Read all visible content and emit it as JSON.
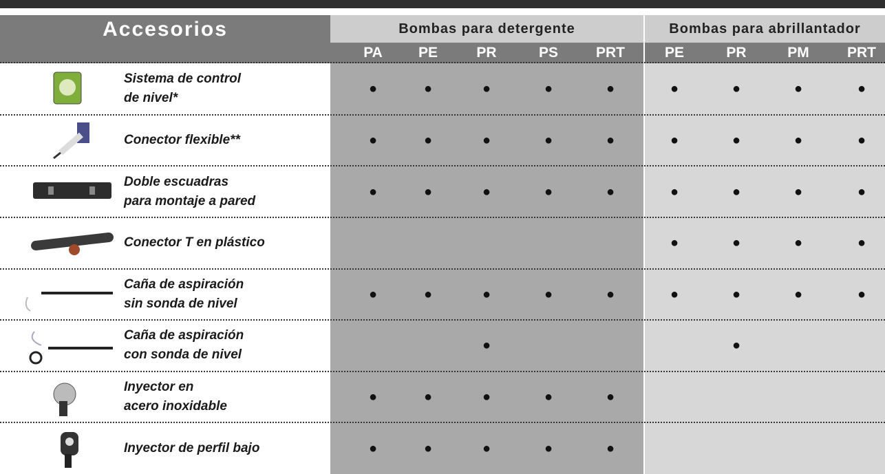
{
  "header": {
    "title": "Accesorios",
    "groups": [
      {
        "title": "Bombas para detergente",
        "columns": [
          "PA",
          "PE",
          "PR",
          "PS",
          "PRT"
        ]
      },
      {
        "title": "Bombas para abrillantador",
        "columns": [
          "PE",
          "PR",
          "PM",
          "PRT"
        ]
      }
    ]
  },
  "rows": [
    {
      "label": [
        "Sistema de control",
        "de nivel*"
      ],
      "cells": [
        "●",
        "●",
        "●",
        "●",
        "●",
        "●",
        "●",
        "●",
        "●"
      ]
    },
    {
      "label": [
        "Conector flexible**"
      ],
      "cells": [
        "●",
        "●",
        "●",
        "●",
        "●",
        "●",
        "●",
        "●",
        "●"
      ]
    },
    {
      "label": [
        "Doble escuadras",
        "para montaje a pared"
      ],
      "cells": [
        "●",
        "●",
        "●",
        "●",
        "●",
        "●",
        "●",
        "●",
        "●"
      ]
    },
    {
      "label": [
        "Conector T en plástico"
      ],
      "cells": [
        null,
        null,
        null,
        null,
        null,
        "●",
        "●",
        "●",
        "●"
      ]
    },
    {
      "label": [
        "Caña de aspiración",
        "sin sonda de nivel"
      ],
      "cells": [
        "●",
        "●",
        "●",
        "●",
        "●",
        "●",
        "●",
        "●",
        "●"
      ]
    },
    {
      "label": [
        "Caña de aspiración",
        "con sonda de nivel"
      ],
      "cells": [
        null,
        null,
        "●",
        null,
        null,
        null,
        "●",
        null,
        null
      ]
    },
    {
      "label": [
        "Inyector en",
        "acero inoxidable"
      ],
      "cells": [
        "●",
        "●",
        "●",
        "●",
        "●",
        null,
        null,
        null,
        null
      ]
    },
    {
      "label": [
        "Inyector de perfil bajo"
      ],
      "cells": [
        "●",
        "●",
        "●",
        "●",
        "●",
        null,
        null,
        null,
        null
      ]
    }
  ]
}
